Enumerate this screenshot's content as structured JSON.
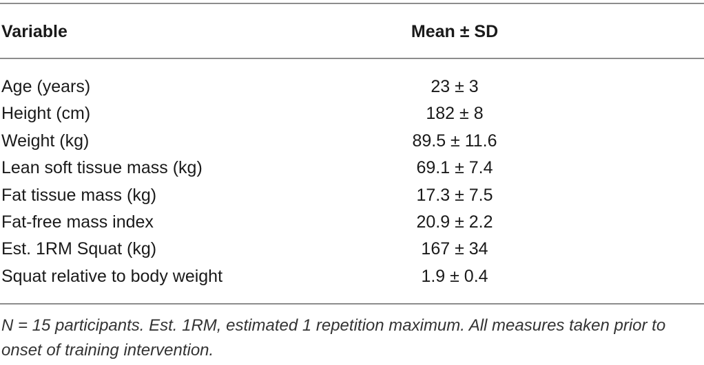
{
  "table": {
    "headers": {
      "variable": "Variable",
      "stat": "Mean ± SD"
    },
    "rows": [
      {
        "label": "Age (years)",
        "value": "23 ± 3"
      },
      {
        "label": "Height (cm)",
        "value": "182 ± 8"
      },
      {
        "label": "Weight (kg)",
        "value": "89.5 ± 11.6"
      },
      {
        "label": "Lean soft tissue mass (kg)",
        "value": "69.1 ± 7.4"
      },
      {
        "label": "Fat tissue mass (kg)",
        "value": "17.3 ± 7.5"
      },
      {
        "label": "Fat-free mass index",
        "value": "20.9 ± 2.2"
      },
      {
        "label": "Est. 1RM Squat (kg)",
        "value": "167 ± 34"
      },
      {
        "label": "Squat relative to body weight",
        "value": "1.9 ± 0.4"
      }
    ],
    "footnote": "N = 15 participants. Est. 1RM, estimated 1 repetition maximum. All measures taken prior to onset of training intervention."
  }
}
